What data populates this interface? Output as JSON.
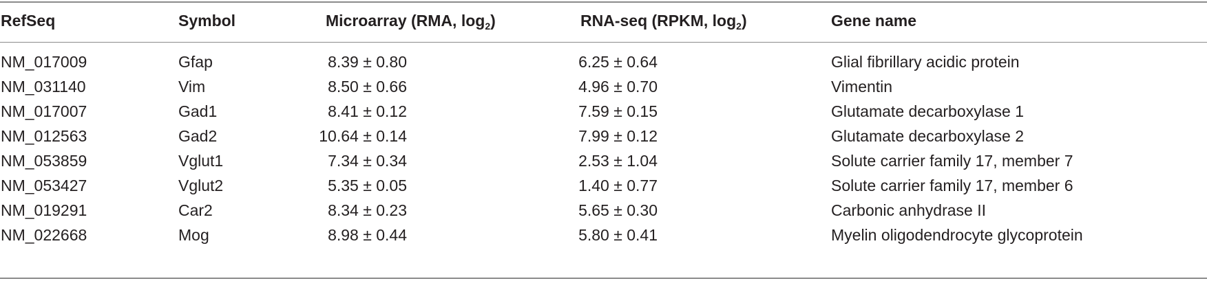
{
  "table": {
    "headers": {
      "refseq": "RefSeq",
      "symbol": "Symbol",
      "microarray_main": "Microarray (RMA, log",
      "microarray_sub": "2",
      "microarray_close": ")",
      "rnaseq_main": "RNA-seq (RPKM, log",
      "rnaseq_sub": "2",
      "rnaseq_close": ")",
      "gene_name": "Gene name"
    },
    "rows": [
      {
        "refseq": "NM_017009",
        "symbol": "Gfap",
        "microarray": "8.39 ± 0.80",
        "rnaseq": "6.25 ± 0.64",
        "gene_name": "Glial fibrillary acidic protein"
      },
      {
        "refseq": "NM_031140",
        "symbol": "Vim",
        "microarray": "8.50 ± 0.66",
        "rnaseq": "4.96 ± 0.70",
        "gene_name": "Vimentin"
      },
      {
        "refseq": "NM_017007",
        "symbol": "Gad1",
        "microarray": "8.41 ± 0.12",
        "rnaseq": "7.59 ± 0.15",
        "gene_name": "Glutamate decarboxylase 1"
      },
      {
        "refseq": "NM_012563",
        "symbol": "Gad2",
        "microarray": "10.64 ± 0.14",
        "rnaseq": "7.99 ± 0.12",
        "gene_name": "Glutamate decarboxylase 2"
      },
      {
        "refseq": "NM_053859",
        "symbol": "Vglut1",
        "microarray": "7.34 ± 0.34",
        "rnaseq": "2.53 ± 1.04",
        "gene_name": "Solute carrier family 17, member 7"
      },
      {
        "refseq": "NM_053427",
        "symbol": "Vglut2",
        "microarray": "5.35 ± 0.05",
        "rnaseq": "1.40 ± 0.77",
        "gene_name": "Solute carrier family 17, member 6"
      },
      {
        "refseq": "NM_019291",
        "symbol": "Car2",
        "microarray": "8.34 ± 0.23",
        "rnaseq": "5.65 ± 0.30",
        "gene_name": "Carbonic anhydrase II"
      },
      {
        "refseq": "NM_022668",
        "symbol": "Mog",
        "microarray": "8.98 ± 0.44",
        "rnaseq": "5.80 ± 0.41",
        "gene_name": "Myelin oligodendrocyte glycoprotein"
      }
    ]
  }
}
